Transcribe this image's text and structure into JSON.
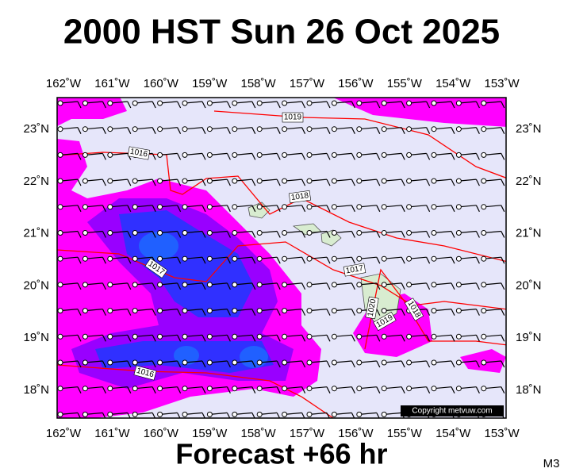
{
  "header": {
    "title": "2000 HST Sun 26 Oct 2025"
  },
  "map": {
    "lon_labels": [
      "162˚W",
      "161˚W",
      "160˚W",
      "159˚W",
      "158˚W",
      "157˚W",
      "156˚W",
      "155˚W",
      "154˚W",
      "153˚W"
    ],
    "lat_labels": [
      "23˚N",
      "22˚N",
      "21˚N",
      "20˚N",
      "19˚N",
      "18˚N"
    ],
    "isobar_labels": [
      "1019",
      "1016",
      "1018",
      "1017",
      "1017",
      "1020",
      "1018",
      "1019",
      "1016"
    ],
    "copyright": "Copyright metvuw.com"
  },
  "footer": {
    "forecast": "Forecast +66 hr",
    "code": "M3"
  }
}
